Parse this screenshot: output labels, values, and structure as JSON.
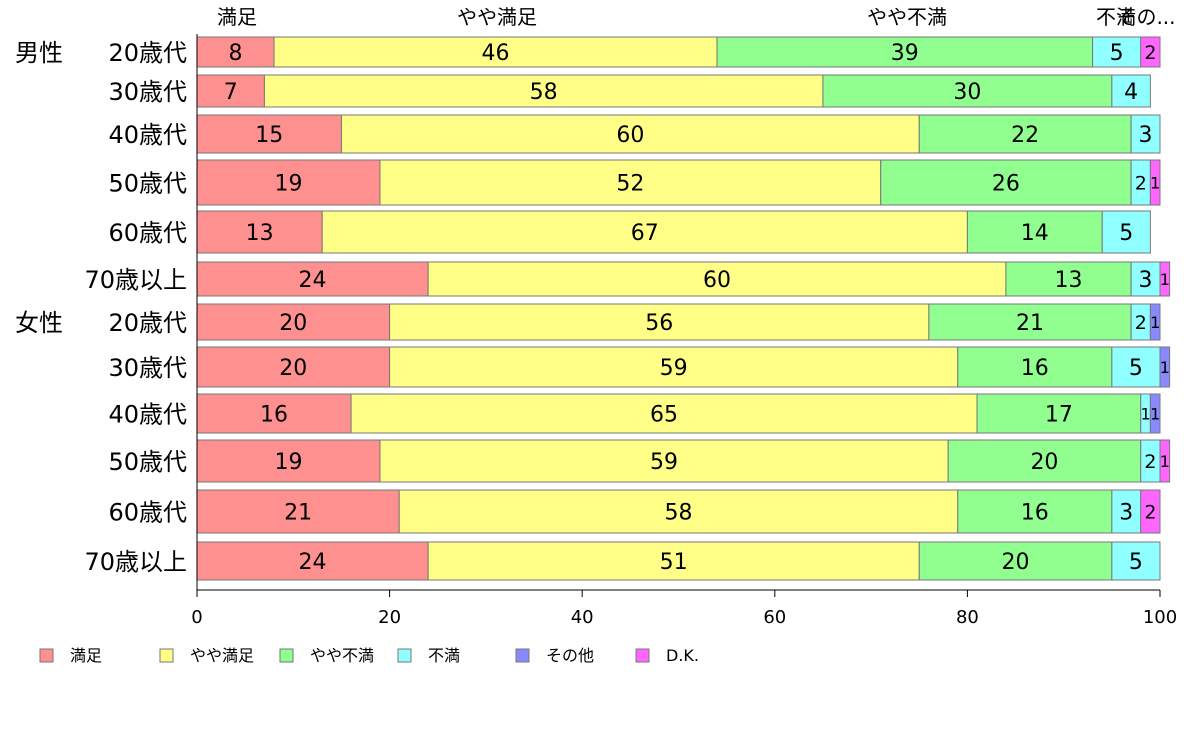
{
  "chart_data": {
    "type": "bar",
    "orientation": "horizontal",
    "stacked": true,
    "group_labels": [
      "男性",
      "",
      "",
      "",
      "",
      "",
      "女性",
      "",
      "",
      "",
      "",
      ""
    ],
    "categories": [
      "20歳代",
      "30歳代",
      "40歳代",
      "50歳代",
      "60歳代",
      "70歳以上",
      "20歳代",
      "30歳代",
      "40歳代",
      "50歳代",
      "60歳代",
      "70歳以上"
    ],
    "series": [
      {
        "name": "満足",
        "color": "#ff9090",
        "values": [
          8,
          7,
          15,
          19,
          13,
          24,
          20,
          20,
          16,
          19,
          21,
          24
        ]
      },
      {
        "name": "やや満足",
        "color": "#ffff88",
        "values": [
          46,
          58,
          60,
          52,
          67,
          60,
          56,
          59,
          65,
          59,
          58,
          51
        ]
      },
      {
        "name": "やや不満",
        "color": "#90ff90",
        "values": [
          39,
          30,
          22,
          26,
          14,
          13,
          21,
          16,
          17,
          20,
          16,
          20
        ]
      },
      {
        "name": "不満",
        "color": "#90ffff",
        "values": [
          5,
          4,
          3,
          2,
          5,
          3,
          2,
          5,
          1,
          2,
          3,
          5
        ]
      },
      {
        "name": "その他",
        "color": "#8888ff",
        "values": [
          0,
          0,
          0,
          0,
          0,
          0,
          1,
          1,
          1,
          0,
          0,
          0
        ]
      },
      {
        "name": "D.K.",
        "color": "#ff66ff",
        "values": [
          2,
          0,
          0,
          1,
          0,
          1,
          0,
          0,
          0,
          1,
          2,
          0
        ]
      }
    ],
    "top_labels": [
      "満足",
      "やや満足",
      "やや不満",
      "不満",
      "その..."
    ],
    "xlim": [
      0,
      100
    ],
    "xticks": [
      "0",
      "20",
      "40",
      "60",
      "80",
      "100"
    ],
    "legend_position": "bottom",
    "grid": false
  }
}
